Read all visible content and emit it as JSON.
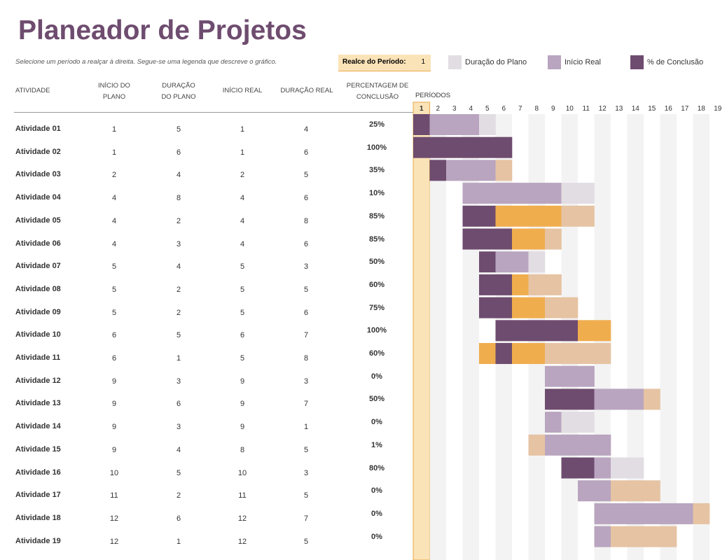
{
  "header": {
    "title": "Planeador de Projetos",
    "subtitle": "Selecione um período a realçar à direita.  Segue-se uma legenda que descreve o gráfico.",
    "highlight_label": "Realce do Período:",
    "highlight_period": 1
  },
  "legend": [
    {
      "label": "Duração do Plano",
      "color": "#e2dde3"
    },
    {
      "label": "Início Real",
      "color": "#b9a5bf"
    },
    {
      "label": "% de Conclusão",
      "color": "#6e4c6f"
    }
  ],
  "table": {
    "columns": [
      "ATIVIDADE",
      "INÍCIO DO PLANO",
      "DURAÇÃO DO PLANO",
      "INÍCIO REAL",
      "DURAÇÃO REAL",
      "PERCENTAGEM DE CONCLUSÃO"
    ],
    "periods_label": "PERÍODOS",
    "periods": [
      1,
      2,
      3,
      4,
      5,
      6,
      7,
      8,
      9,
      10,
      11,
      12,
      13,
      14,
      15,
      16,
      17,
      18,
      19
    ],
    "rows": [
      {
        "activity": "Atividade 01",
        "plan_start": 1,
        "plan_duration": 5,
        "actual_start": 1,
        "actual_duration": 4,
        "pct": {
          "value": 25,
          "label": "25%"
        }
      },
      {
        "activity": "Atividade 02",
        "plan_start": 1,
        "plan_duration": 6,
        "actual_start": 1,
        "actual_duration": 6,
        "pct": {
          "value": 100,
          "label": "100%"
        }
      },
      {
        "activity": "Atividade 03",
        "plan_start": 2,
        "plan_duration": 4,
        "actual_start": 2,
        "actual_duration": 5,
        "pct": {
          "value": 35,
          "label": "35%"
        }
      },
      {
        "activity": "Atividade 04",
        "plan_start": 4,
        "plan_duration": 8,
        "actual_start": 4,
        "actual_duration": 6,
        "pct": {
          "value": 10,
          "label": "10%"
        }
      },
      {
        "activity": "Atividade 05",
        "plan_start": 4,
        "plan_duration": 2,
        "actual_start": 4,
        "actual_duration": 8,
        "pct": {
          "value": 85,
          "label": "85%"
        }
      },
      {
        "activity": "Atividade 06",
        "plan_start": 4,
        "plan_duration": 3,
        "actual_start": 4,
        "actual_duration": 6,
        "pct": {
          "value": 85,
          "label": "85%"
        }
      },
      {
        "activity": "Atividade 07",
        "plan_start": 5,
        "plan_duration": 4,
        "actual_start": 5,
        "actual_duration": 3,
        "pct": {
          "value": 50,
          "label": "50%"
        }
      },
      {
        "activity": "Atividade 08",
        "plan_start": 5,
        "plan_duration": 2,
        "actual_start": 5,
        "actual_duration": 5,
        "pct": {
          "value": 60,
          "label": "60%"
        }
      },
      {
        "activity": "Atividade 09",
        "plan_start": 5,
        "plan_duration": 2,
        "actual_start": 5,
        "actual_duration": 6,
        "pct": {
          "value": 75,
          "label": "75%"
        }
      },
      {
        "activity": "Atividade 10",
        "plan_start": 6,
        "plan_duration": 5,
        "actual_start": 6,
        "actual_duration": 7,
        "pct": {
          "value": 100,
          "label": "100%"
        }
      },
      {
        "activity": "Atividade 11",
        "plan_start": 6,
        "plan_duration": 1,
        "actual_start": 5,
        "actual_duration": 8,
        "pct": {
          "value": 60,
          "label": "60%"
        }
      },
      {
        "activity": "Atividade 12",
        "plan_start": 9,
        "plan_duration": 3,
        "actual_start": 9,
        "actual_duration": 3,
        "pct": {
          "value": 0,
          "label": "0%"
        }
      },
      {
        "activity": "Atividade 13",
        "plan_start": 9,
        "plan_duration": 6,
        "actual_start": 9,
        "actual_duration": 7,
        "pct": {
          "value": 50,
          "label": "50%"
        }
      },
      {
        "activity": "Atividade 14",
        "plan_start": 9,
        "plan_duration": 3,
        "actual_start": 9,
        "actual_duration": 1,
        "pct": {
          "value": 0,
          "label": "0%"
        }
      },
      {
        "activity": "Atividade 15",
        "plan_start": 9,
        "plan_duration": 4,
        "actual_start": 8,
        "actual_duration": 5,
        "pct": {
          "value": 1,
          "label": "1%"
        }
      },
      {
        "activity": "Atividade 16",
        "plan_start": 10,
        "plan_duration": 5,
        "actual_start": 10,
        "actual_duration": 3,
        "pct": {
          "value": 80,
          "label": "80%"
        }
      },
      {
        "activity": "Atividade 17",
        "plan_start": 11,
        "plan_duration": 2,
        "actual_start": 11,
        "actual_duration": 5,
        "pct": {
          "value": 0,
          "label": "0%"
        }
      },
      {
        "activity": "Atividade 18",
        "plan_start": 12,
        "plan_duration": 6,
        "actual_start": 12,
        "actual_duration": 7,
        "pct": {
          "value": 0,
          "label": "0%"
        }
      },
      {
        "activity": "Atividade 19",
        "plan_start": 12,
        "plan_duration": 1,
        "actual_start": 12,
        "actual_duration": 5,
        "pct": {
          "value": 0,
          "label": "0%"
        }
      }
    ]
  }
}
